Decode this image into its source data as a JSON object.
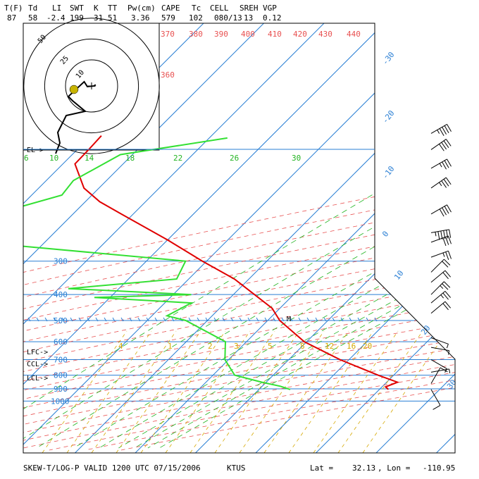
{
  "header": {
    "labels": [
      "T(F)",
      "Td",
      "LI",
      "SWT",
      "K",
      "TT",
      "Pw(cm)",
      "CAPE",
      "Tc",
      "CELL",
      "SREH",
      "VGP"
    ],
    "values": [
      "87",
      "58",
      "-2.4",
      "199",
      "31",
      "51",
      "3.36",
      "579",
      "102",
      "080/13",
      "13",
      "0.12"
    ]
  },
  "footer": {
    "title": "SKEW-T/LOG-P VALID 1200 UTC 07/15/2006",
    "station": "KTUS",
    "lat_label": "Lat =",
    "lat": "32.13",
    "lon_label": ", Lon =",
    "lon": "-110.95"
  },
  "levels": {
    "el": "EL->",
    "lfc": "LFC->",
    "ccl": "CCL->",
    "lcl": "LCL->",
    "m_marker": "M"
  },
  "colors": {
    "isobar": "#2a7fd4",
    "isotherm": "#2a7fd4",
    "dry_adiabat": "#e85050",
    "mixing_ratio": "#22b422",
    "moist_adiabat": "#d6a800",
    "temperature": "#e00000",
    "dewpoint": "#33e033",
    "wind_barb": "#000000",
    "hodograph_dot": "#c8b400"
  },
  "chart_data": {
    "type": "skew-t",
    "pressure_levels": [
      300,
      400,
      500,
      600,
      700,
      800,
      900,
      1000
    ],
    "pressure_tick_labels": [
      "300",
      "400",
      "500",
      "600",
      "700",
      "800",
      "900",
      "1000"
    ],
    "isotherm_labels": [
      "-30",
      "-20",
      "-10",
      "0",
      "10",
      "20",
      "30"
    ],
    "theta_labels": [
      "370",
      "380",
      "390",
      "400",
      "410",
      "420",
      "430",
      "440",
      "360"
    ],
    "mixing_ratio_labels": [
      "6",
      "10",
      "14",
      "18",
      "22",
      "26",
      "30"
    ],
    "theta_e_labels": [
      "4",
      "1",
      "2",
      "3",
      "5",
      "8",
      "12",
      "16",
      "20"
    ],
    "temperature_profile": [
      {
        "p": 905,
        "t": 31.5
      },
      {
        "p": 885,
        "t": 30.6
      },
      {
        "p": 850,
        "t": 31.8
      },
      {
        "p": 800,
        "t": 27.4
      },
      {
        "p": 700,
        "t": 18.5
      },
      {
        "p": 600,
        "t": 9.6
      },
      {
        "p": 500,
        "t": 2.0
      },
      {
        "p": 450,
        "t": -1.3
      },
      {
        "p": 400,
        "t": -6.5
      },
      {
        "p": 350,
        "t": -12.4
      },
      {
        "p": 300,
        "t": -20.7
      },
      {
        "p": 250,
        "t": -30.0
      },
      {
        "p": 200,
        "t": -42.0
      },
      {
        "p": 180,
        "t": -47.6
      },
      {
        "p": 160,
        "t": -52.5
      },
      {
        "p": 130,
        "t": -58.0
      },
      {
        "p": 115,
        "t": -58.1
      },
      {
        "p": 102,
        "t": -58.3
      }
    ],
    "dewpoint_profile": [
      {
        "p": 905,
        "td": 15.2
      },
      {
        "p": 880,
        "td": 13.0
      },
      {
        "p": 850,
        "td": 9.3
      },
      {
        "p": 800,
        "td": 3.6
      },
      {
        "p": 700,
        "td": -0.6
      },
      {
        "p": 600,
        "td": -3.5
      },
      {
        "p": 500,
        "td": -13.6
      },
      {
        "p": 480,
        "td": -17.5
      },
      {
        "p": 430,
        "td": -15.6
      },
      {
        "p": 410,
        "td": -32.6
      },
      {
        "p": 400,
        "td": -17.0
      },
      {
        "p": 380,
        "td": -38.4
      },
      {
        "p": 350,
        "td": -22.0
      },
      {
        "p": 300,
        "td": -23.5
      },
      {
        "p": 250,
        "td": -65.5
      },
      {
        "p": 200,
        "td": -63.0
      },
      {
        "p": 170,
        "td": -55.0
      },
      {
        "p": 150,
        "td": -55.5
      },
      {
        "p": 120,
        "td": -52.0
      },
      {
        "p": 104,
        "td": -37.0
      }
    ],
    "hodograph_ring_labels": [
      "10",
      "25",
      "50"
    ],
    "hodograph_points": [
      {
        "u": 2,
        "v": 0.5
      },
      {
        "u": 1.5,
        "v": 0.3
      },
      {
        "u": 1.5,
        "v": 0
      },
      {
        "u": -2,
        "v": -0.3
      },
      {
        "u": -3.5,
        "v": 2
      },
      {
        "u": -11,
        "v": -5
      },
      {
        "u": -9,
        "v": -7
      },
      {
        "u": -3,
        "v": -12
      },
      {
        "u": -12,
        "v": -14
      },
      {
        "u": -16,
        "v": -22
      },
      {
        "u": -15,
        "v": -27
      },
      {
        "u": -17,
        "v": -32
      }
    ],
    "wind_barbs": [
      {
        "p": 100,
        "dir": 60,
        "spd": 45
      },
      {
        "p": 115,
        "dir": 55,
        "spd": 40
      },
      {
        "p": 135,
        "dir": 60,
        "spd": 35
      },
      {
        "p": 160,
        "dir": 55,
        "spd": 35
      },
      {
        "p": 200,
        "dir": 60,
        "spd": 40
      },
      {
        "p": 235,
        "dir": 80,
        "spd": 55
      },
      {
        "p": 255,
        "dir": 70,
        "spd": 30
      },
      {
        "p": 290,
        "dir": 70,
        "spd": 25
      },
      {
        "p": 330,
        "dir": 45,
        "spd": 20
      },
      {
        "p": 360,
        "dir": 50,
        "spd": 20
      },
      {
        "p": 400,
        "dir": 45,
        "spd": 25
      },
      {
        "p": 430,
        "dir": 50,
        "spd": 25
      },
      {
        "p": 470,
        "dir": 50,
        "spd": 20
      },
      {
        "p": 580,
        "dir": 110,
        "spd": 5
      },
      {
        "p": 630,
        "dir": 100,
        "spd": 5
      },
      {
        "p": 700,
        "dir": 120,
        "spd": 5
      },
      {
        "p": 780,
        "dir": 80,
        "spd": 5
      },
      {
        "p": 860,
        "dir": 30,
        "spd": 10
      },
      {
        "p": 905,
        "dir": 150,
        "spd": 10
      }
    ]
  }
}
